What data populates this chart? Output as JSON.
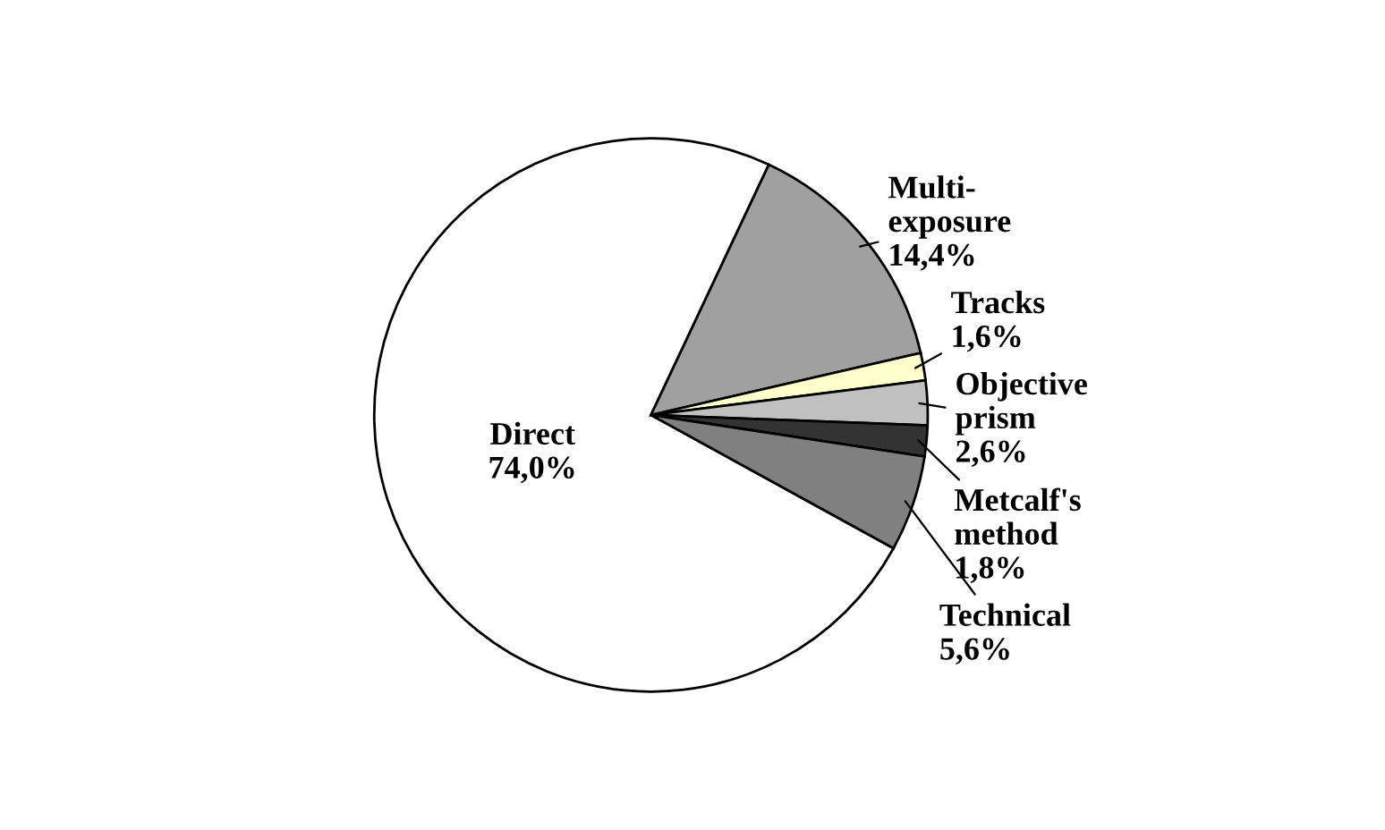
{
  "chart_data": {
    "type": "pie",
    "categories": [
      "Direct",
      "Multi-\nexposure",
      "Tracks",
      "Objective\nprism",
      "Metcalf's\nmethod",
      "Technical"
    ],
    "values": [
      74.0,
      14.4,
      1.6,
      2.6,
      1.8,
      5.6
    ],
    "value_labels": [
      "74,0%",
      "14,4%",
      "1,6%",
      "2,6%",
      "1,8%",
      "5,6%"
    ],
    "colors": [
      "#ffffff",
      "#a0a0a0",
      "#ffffcc",
      "#c0c0c0",
      "#333333",
      "#808080"
    ]
  }
}
